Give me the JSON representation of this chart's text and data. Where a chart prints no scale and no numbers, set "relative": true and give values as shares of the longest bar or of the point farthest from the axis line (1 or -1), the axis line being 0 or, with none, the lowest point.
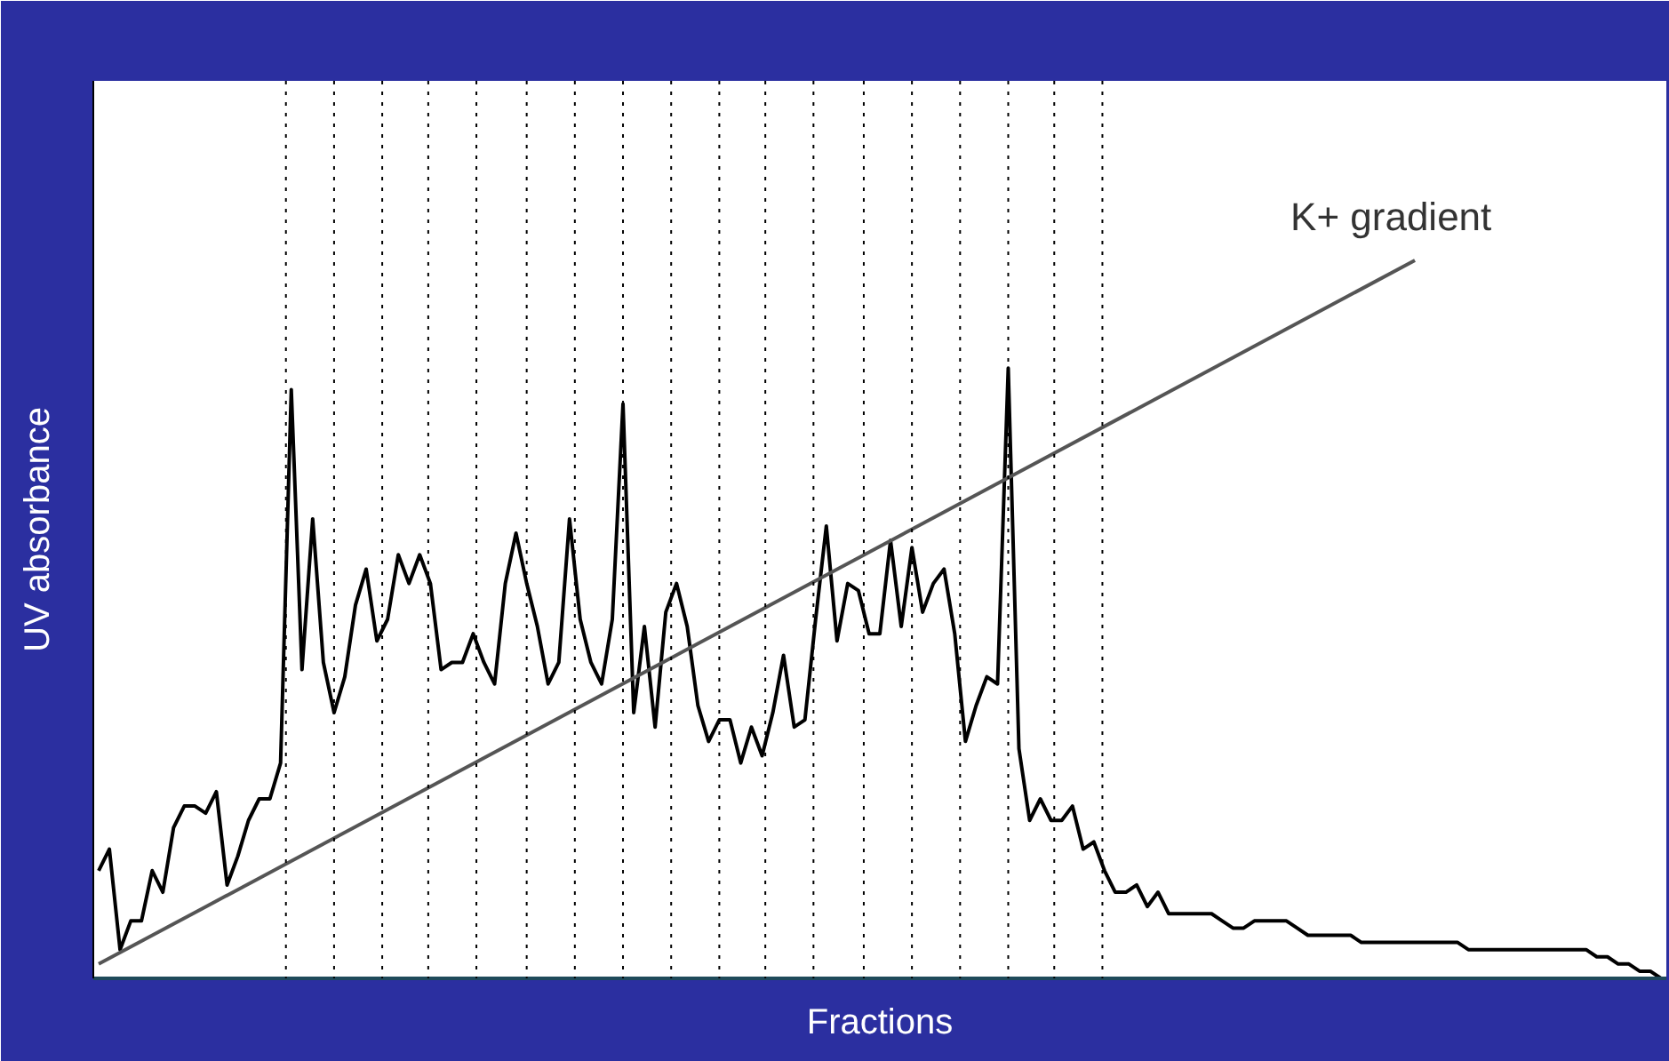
{
  "chart_data": {
    "type": "line",
    "xlabel": "Fractions",
    "ylabel": "UV absorbance",
    "relative": true,
    "grid": false,
    "marker": "none",
    "categories": [
      null,
      null,
      null,
      null,
      null,
      null,
      null,
      null,
      null,
      null,
      null,
      null,
      null,
      null,
      null,
      null,
      null,
      null,
      null,
      null,
      null,
      null,
      null,
      null,
      null,
      null,
      null,
      null,
      null,
      null,
      null,
      null,
      null,
      null,
      null,
      null,
      null,
      null,
      null,
      null,
      null,
      null,
      null,
      null,
      null,
      null,
      null,
      null,
      null,
      null,
      null,
      null,
      null,
      null,
      null,
      null,
      null,
      null,
      null,
      null,
      null,
      null,
      null,
      null,
      null,
      null,
      null,
      null,
      null,
      null,
      null,
      null,
      null,
      null,
      null,
      null,
      null,
      null,
      null,
      null,
      null,
      null,
      null,
      null,
      null,
      null,
      null,
      null,
      null,
      null,
      null,
      null,
      null,
      null,
      null,
      null,
      null,
      null,
      null,
      null,
      null,
      null,
      null,
      null,
      null,
      null,
      null,
      null,
      null,
      null,
      null,
      null,
      null,
      null,
      null,
      null,
      null,
      null,
      null,
      null,
      null,
      null,
      null,
      null,
      null,
      null,
      null,
      null,
      null,
      null,
      null,
      null,
      null,
      null,
      null,
      null,
      null,
      null,
      null,
      null,
      null,
      null,
      null,
      null,
      null,
      null,
      null
    ],
    "series": [
      {
        "color": "#000000",
        "values": [
          0.15,
          0.18,
          0.04,
          0.08,
          0.08,
          0.15,
          0.12,
          0.21,
          0.24,
          0.24,
          0.23,
          0.26,
          0.13,
          0.17,
          0.22,
          0.25,
          0.25,
          0.3,
          0.82,
          0.43,
          0.64,
          0.44,
          0.37,
          0.42,
          0.52,
          0.57,
          0.47,
          0.5,
          0.59,
          0.55,
          0.59,
          0.55,
          0.43,
          0.44,
          0.44,
          0.48,
          0.44,
          0.41,
          0.55,
          0.62,
          0.55,
          0.49,
          0.41,
          0.44,
          0.64,
          0.5,
          0.44,
          0.41,
          0.5,
          0.8,
          0.37,
          0.49,
          0.35,
          0.51,
          0.55,
          0.49,
          0.38,
          0.33,
          0.36,
          0.36,
          0.3,
          0.35,
          0.31,
          0.37,
          0.45,
          0.35,
          0.36,
          0.5,
          0.63,
          0.47,
          0.55,
          0.54,
          0.48,
          0.48,
          0.61,
          0.49,
          0.6,
          0.51,
          0.55,
          0.57,
          0.48,
          0.33,
          0.38,
          0.42,
          0.41,
          0.85,
          0.32,
          0.22,
          0.25,
          0.22,
          0.22,
          0.24,
          0.18,
          0.19,
          0.15,
          0.12,
          0.12,
          0.13,
          0.1,
          0.12,
          0.09,
          0.09,
          0.09,
          0.09,
          0.09,
          0.08,
          0.07,
          0.07,
          0.08,
          0.08,
          0.08,
          0.08,
          0.07,
          0.06,
          0.06,
          0.06,
          0.06,
          0.06,
          0.05,
          0.05,
          0.05,
          0.05,
          0.05,
          0.05,
          0.05,
          0.05,
          0.05,
          0.05,
          0.04,
          0.04,
          0.04,
          0.04,
          0.04,
          0.04,
          0.04,
          0.04,
          0.04,
          0.04,
          0.04,
          0.04,
          0.03,
          0.03,
          0.02,
          0.02,
          0.01,
          0.01,
          0
        ]
      },
      {
        "type": "line",
        "color": "#555555",
        "values": [
          0.02,
          null,
          null,
          null,
          null,
          null,
          null,
          null,
          null,
          null,
          null,
          null,
          null,
          null,
          null,
          null,
          null,
          null,
          null,
          null,
          null,
          null,
          null,
          null,
          null,
          null,
          null,
          null,
          null,
          null,
          null,
          null,
          null,
          null,
          null,
          null,
          null,
          null,
          null,
          null,
          null,
          null,
          null,
          null,
          null,
          null,
          null,
          null,
          null,
          null,
          null,
          null,
          null,
          null,
          null,
          null,
          null,
          null,
          null,
          null,
          null,
          null,
          null,
          null,
          null,
          null,
          null,
          null,
          null,
          null,
          null,
          null,
          null,
          null,
          null,
          null,
          null,
          null,
          null,
          null,
          null,
          null,
          null,
          null,
          null,
          null,
          null,
          null,
          null,
          null,
          null,
          null,
          null,
          null,
          null,
          null,
          null,
          null,
          null,
          null,
          null,
          null,
          null,
          null,
          null,
          null,
          null,
          null,
          null,
          null,
          null,
          null,
          null,
          null,
          null,
          null,
          null,
          null,
          null,
          null,
          null,
          null,
          null,
          1.0,
          null,
          null,
          null,
          null,
          null,
          null,
          null,
          null,
          null,
          null,
          null,
          null,
          null,
          null,
          null,
          null,
          null,
          null,
          null,
          null,
          null,
          null,
          null
        ]
      }
    ],
    "annotations": [
      "K+ gradient"
    ]
  }
}
